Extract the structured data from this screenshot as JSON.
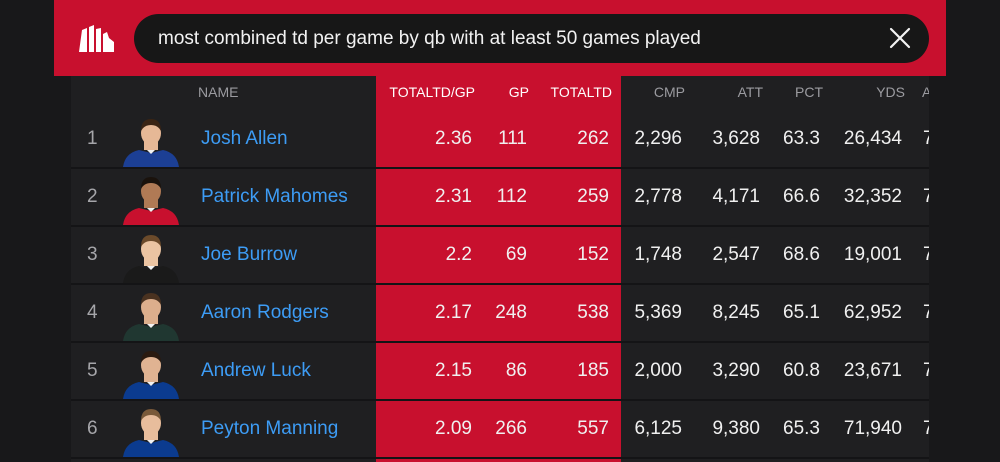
{
  "search": {
    "query": "most combined td per game by qb with at least 50 games played",
    "logo_icon": "statmuse-logo-icon",
    "clear_icon": "close-icon"
  },
  "colors": {
    "accent": "#c8102e",
    "link": "#3d9cf5",
    "background": "#18181a",
    "panel": "#1f1f21"
  },
  "table": {
    "columns": {
      "name": "NAME",
      "totaltd_gp": "TOTALTD/GP",
      "gp": "GP",
      "totaltd": "TOTALTD",
      "cmp": "CMP",
      "att": "ATT",
      "pct": "PCT",
      "yds": "YDS",
      "next": "A"
    },
    "rows": [
      {
        "rank": "1",
        "name": "Josh Allen",
        "totaltd_gp": "2.36",
        "gp": "111",
        "totaltd": "262",
        "cmp": "2,296",
        "att": "3,628",
        "pct": "63.3",
        "yds": "26,434",
        "next": "7",
        "jersey": "#1c3f94",
        "hair": "#3a2414",
        "skin": "#e6b896"
      },
      {
        "rank": "2",
        "name": "Patrick Mahomes",
        "totaltd_gp": "2.31",
        "gp": "112",
        "totaltd": "259",
        "cmp": "2,778",
        "att": "4,171",
        "pct": "66.6",
        "yds": "32,352",
        "next": "7",
        "jersey": "#c8102e",
        "hair": "#1a120c",
        "skin": "#b07a55"
      },
      {
        "rank": "3",
        "name": "Joe Burrow",
        "totaltd_gp": "2.2",
        "gp": "69",
        "totaltd": "152",
        "cmp": "1,748",
        "att": "2,547",
        "pct": "68.6",
        "yds": "19,001",
        "next": "7",
        "jersey": "#1a1a1a",
        "hair": "#6b4a2a",
        "skin": "#ebc4a2"
      },
      {
        "rank": "4",
        "name": "Aaron Rodgers",
        "totaltd_gp": "2.17",
        "gp": "248",
        "totaltd": "538",
        "cmp": "5,369",
        "att": "8,245",
        "pct": "65.1",
        "yds": "62,952",
        "next": "7",
        "jersey": "#203731",
        "hair": "#4a3220",
        "skin": "#dcae8c"
      },
      {
        "rank": "5",
        "name": "Andrew Luck",
        "totaltd_gp": "2.15",
        "gp": "86",
        "totaltd": "185",
        "cmp": "2,000",
        "att": "3,290",
        "pct": "60.8",
        "yds": "23,671",
        "next": "7",
        "jersey": "#0b3b8f",
        "hair": "#2a1a10",
        "skin": "#e0b392"
      },
      {
        "rank": "6",
        "name": "Peyton Manning",
        "totaltd_gp": "2.09",
        "gp": "266",
        "totaltd": "557",
        "cmp": "6,125",
        "att": "9,380",
        "pct": "65.3",
        "yds": "71,940",
        "next": "7",
        "jersey": "#0b3b8f",
        "hair": "#7a5a3a",
        "skin": "#e8bd9c"
      }
    ]
  }
}
